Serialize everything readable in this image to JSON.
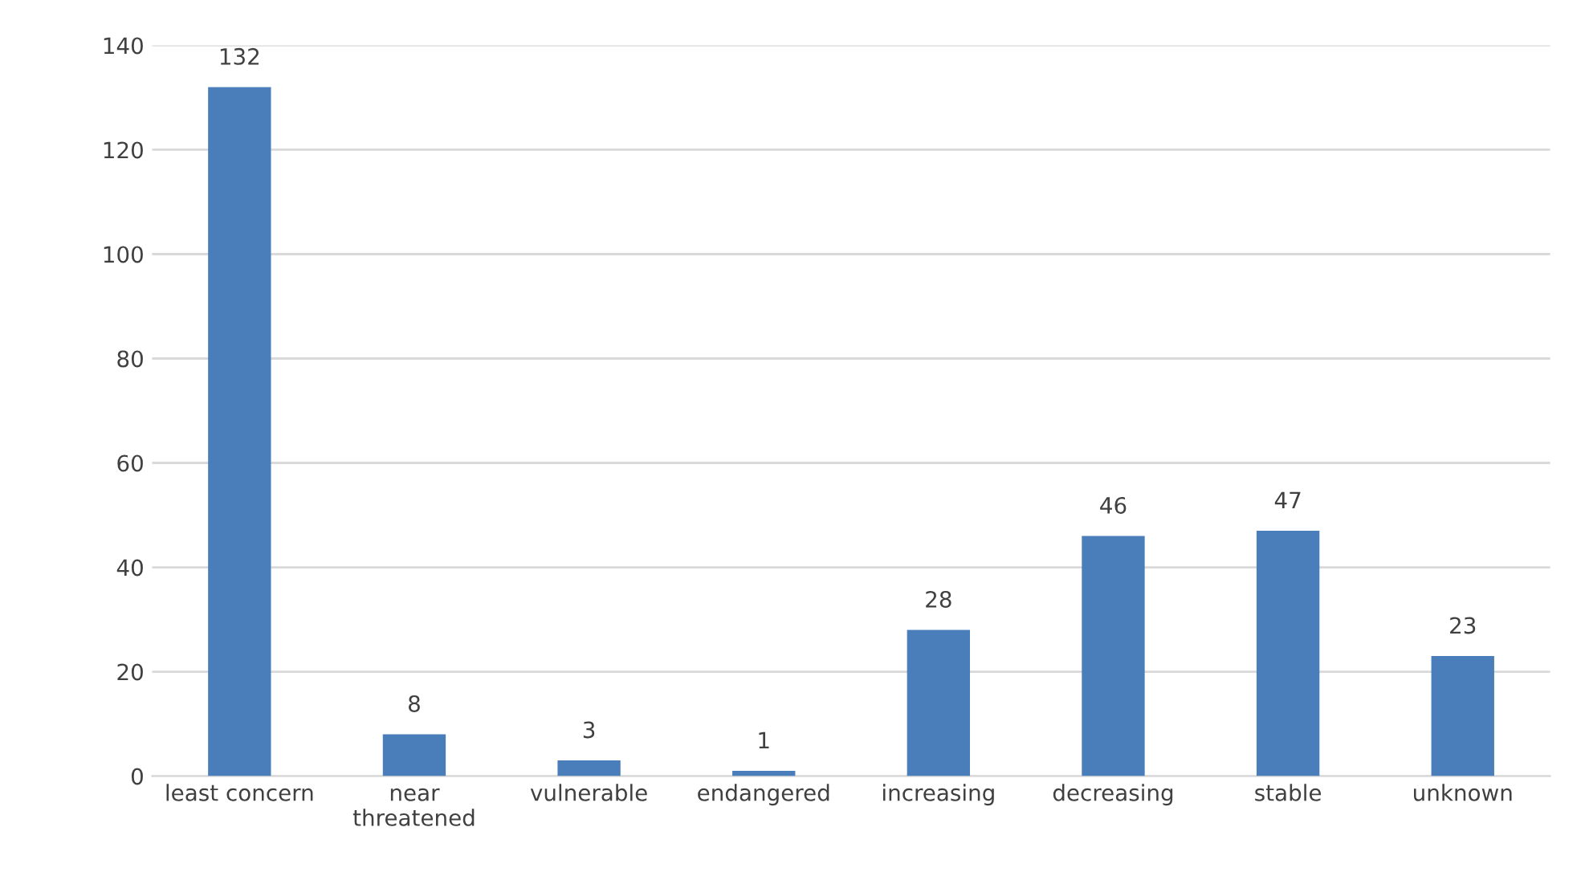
{
  "chart_data": {
    "type": "bar",
    "categories": [
      "least concern",
      "near\nthreatened",
      "vulnerable",
      "endangered",
      "increasing",
      "decreasing",
      "stable",
      "unknown"
    ],
    "values": [
      132,
      8,
      3,
      1,
      28,
      46,
      47,
      23
    ],
    "color": "#4a7ebb",
    "ylim": [
      0,
      140
    ],
    "yticks": [
      0,
      20,
      40,
      60,
      80,
      100,
      120,
      140
    ],
    "grid": "y",
    "data_labels": true,
    "legend": false
  }
}
